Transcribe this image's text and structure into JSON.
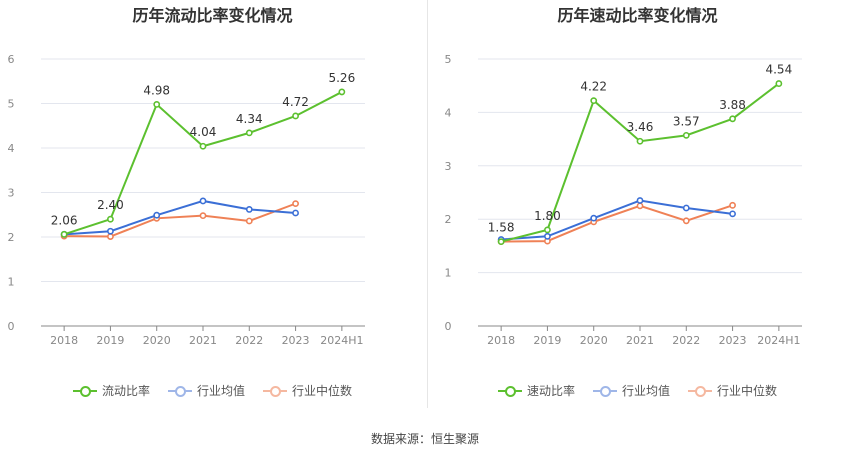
{
  "charts": [
    {
      "title": "历年流动比率变化情况",
      "legend": [
        "流动比率",
        "行业均值",
        "行业中位数"
      ]
    },
    {
      "title": "历年速动比率变化情况",
      "legend": [
        "速动比率",
        "行业均值",
        "行业中位数"
      ]
    }
  ],
  "colors": {
    "main": "#5cc02f",
    "avg": "#3b6fd6",
    "median": "#ef8156"
  },
  "source": "数据来源：恒生聚源",
  "chart_data": [
    {
      "type": "line",
      "title": "历年流动比率变化情况",
      "categories": [
        "2018",
        "2019",
        "2020",
        "2021",
        "2022",
        "2023",
        "2024H1"
      ],
      "ylim": [
        0,
        6
      ],
      "yticks": [
        0,
        1,
        2,
        3,
        4,
        5,
        6
      ],
      "series": [
        {
          "name": "流动比率",
          "values": [
            2.06,
            2.4,
            4.98,
            4.04,
            4.34,
            4.72,
            5.26
          ],
          "labels": true
        },
        {
          "name": "行业均值",
          "values": [
            2.06,
            2.13,
            2.49,
            2.81,
            2.62,
            2.54,
            null
          ]
        },
        {
          "name": "行业中位数",
          "values": [
            2.02,
            2.01,
            2.42,
            2.48,
            2.36,
            2.75,
            null
          ]
        }
      ]
    },
    {
      "type": "line",
      "title": "历年速动比率变化情况",
      "categories": [
        "2018",
        "2019",
        "2020",
        "2021",
        "2022",
        "2023",
        "2024H1"
      ],
      "ylim": [
        0,
        5
      ],
      "yticks": [
        0,
        1,
        2,
        3,
        4,
        5
      ],
      "series": [
        {
          "name": "速动比率",
          "values": [
            1.58,
            1.8,
            4.22,
            3.46,
            3.57,
            3.88,
            4.54
          ],
          "labels": true
        },
        {
          "name": "行业均值",
          "values": [
            1.62,
            1.68,
            2.02,
            2.35,
            2.21,
            2.1,
            null
          ]
        },
        {
          "name": "行业中位数",
          "values": [
            1.58,
            1.59,
            1.95,
            2.25,
            1.97,
            2.26,
            null
          ]
        }
      ]
    }
  ]
}
